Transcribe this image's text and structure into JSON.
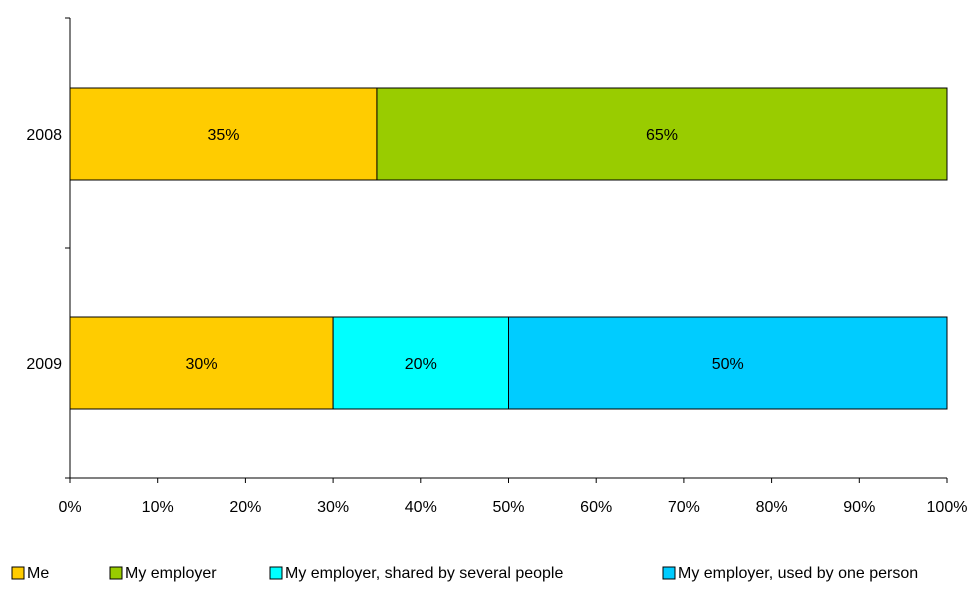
{
  "chart_data": {
    "type": "bar",
    "orientation": "horizontal",
    "stacked": true,
    "percent_stacked": true,
    "categories": [
      "2008",
      "2009"
    ],
    "series": [
      {
        "name": "Me",
        "color": "#FFCC00",
        "values": [
          35,
          30
        ],
        "labels": [
          "35%",
          "30%"
        ]
      },
      {
        "name": "My employer",
        "color": "#99CC00",
        "values": [
          65,
          0
        ],
        "labels": [
          "65%",
          ""
        ]
      },
      {
        "name": "My employer, shared by several people",
        "color": "#00FFFF",
        "values": [
          0,
          20
        ],
        "labels": [
          "",
          "20%"
        ]
      },
      {
        "name": "My employer, used by one person",
        "color": "#00CCFF",
        "values": [
          0,
          50
        ],
        "labels": [
          "",
          "50%"
        ]
      }
    ],
    "x_ticks": [
      "0%",
      "10%",
      "20%",
      "30%",
      "40%",
      "50%",
      "60%",
      "70%",
      "80%",
      "90%",
      "100%"
    ],
    "xlim": [
      0,
      100
    ],
    "grid": false,
    "legend_position": "bottom"
  }
}
